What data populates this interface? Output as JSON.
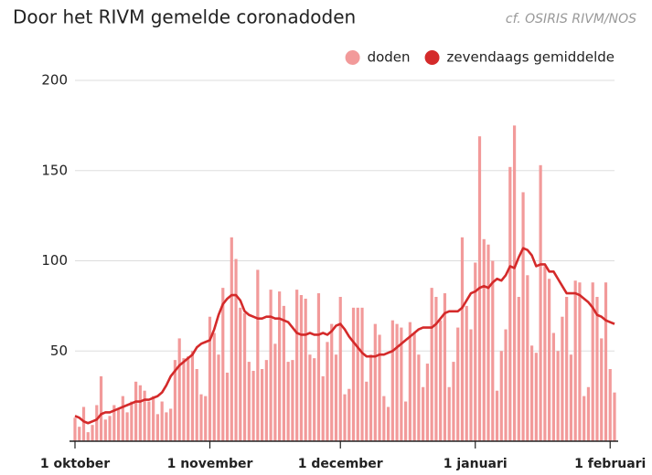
{
  "chart_data": {
    "type": "bar_line",
    "title": "Door het RIVM gemelde coronadoden",
    "source": "cf. OSIRIS RIVM/NOS",
    "legend": "top-right",
    "grid": true,
    "ylim": [
      0,
      200
    ],
    "yticks": [
      50,
      100,
      150,
      200
    ],
    "categories": [
      "1 oktober",
      null,
      null,
      null,
      null,
      null,
      null,
      null,
      null,
      null,
      null,
      null,
      null,
      null,
      null,
      null,
      null,
      null,
      null,
      null,
      null,
      null,
      null,
      null,
      null,
      null,
      null,
      null,
      null,
      null,
      null,
      "1 november",
      null,
      null,
      null,
      null,
      null,
      null,
      null,
      null,
      null,
      null,
      null,
      null,
      null,
      null,
      null,
      null,
      null,
      null,
      null,
      null,
      null,
      null,
      null,
      null,
      null,
      null,
      null,
      null,
      null,
      "1 december",
      null,
      null,
      null,
      null,
      null,
      null,
      null,
      null,
      null,
      null,
      null,
      null,
      null,
      null,
      null,
      null,
      null,
      null,
      null,
      null,
      null,
      null,
      null,
      null,
      null,
      null,
      null,
      null,
      null,
      null,
      "1 januari",
      null,
      null,
      null,
      null,
      null,
      null,
      null,
      null,
      null,
      null,
      null,
      null,
      null,
      null,
      null,
      null,
      null,
      null,
      null,
      null,
      null,
      null,
      null,
      null,
      null,
      null,
      null,
      null,
      null,
      null,
      "1 februari",
      null
    ],
    "series": [
      {
        "name": "doden",
        "kind": "bar",
        "color": "#f29a9a",
        "values": [
          13,
          8,
          19,
          5,
          9,
          20,
          36,
          12,
          14,
          20,
          18,
          25,
          16,
          22,
          33,
          31,
          28,
          22,
          25,
          15,
          22,
          16,
          18,
          45,
          57,
          46,
          47,
          50,
          40,
          26,
          25,
          69,
          60,
          48,
          85,
          38,
          113,
          101,
          74,
          71,
          44,
          39,
          95,
          40,
          45,
          84,
          54,
          83,
          75,
          44,
          45,
          84,
          81,
          79,
          48,
          46,
          82,
          36,
          55,
          65,
          48,
          80,
          26,
          29,
          74,
          74,
          74,
          33,
          48,
          65,
          59,
          25,
          19,
          67,
          65,
          63,
          22,
          66,
          60,
          48,
          30,
          43,
          85,
          80,
          67,
          82,
          30,
          44,
          63,
          113,
          75,
          62,
          99,
          169,
          112,
          109,
          100,
          28,
          50,
          62,
          152,
          175,
          80,
          138,
          92,
          53,
          49,
          153,
          97,
          90,
          60,
          50,
          69,
          80,
          48,
          89,
          88,
          25,
          30,
          88,
          80,
          57,
          88,
          40,
          27
        ]
      },
      {
        "name": "zevendaags gemiddelde",
        "kind": "line",
        "color": "#d42a2a",
        "values": [
          14,
          13,
          11,
          10,
          11,
          12,
          15,
          16,
          16,
          17,
          18,
          19,
          20,
          21,
          22,
          22,
          23,
          23,
          24,
          25,
          27,
          31,
          36,
          39,
          42,
          44,
          46,
          48,
          52,
          54,
          55,
          56,
          62,
          70,
          76,
          79,
          81,
          81,
          78,
          72,
          70,
          69,
          68,
          68,
          69,
          69,
          68,
          68,
          67,
          66,
          63,
          60,
          59,
          59,
          60,
          59,
          59,
          60,
          59,
          61,
          64,
          65,
          62,
          58,
          55,
          52,
          49,
          47,
          47,
          47,
          48,
          48,
          49,
          50,
          52,
          54,
          56,
          58,
          60,
          62,
          63,
          63,
          63,
          65,
          68,
          71,
          72,
          72,
          72,
          74,
          78,
          82,
          83,
          85,
          86,
          85,
          88,
          90,
          89,
          92,
          97,
          96,
          102,
          107,
          106,
          103,
          97,
          98,
          98,
          94,
          94,
          90,
          86,
          82,
          82,
          82,
          81,
          79,
          77,
          74,
          70,
          69,
          67,
          66,
          65
        ]
      }
    ]
  }
}
